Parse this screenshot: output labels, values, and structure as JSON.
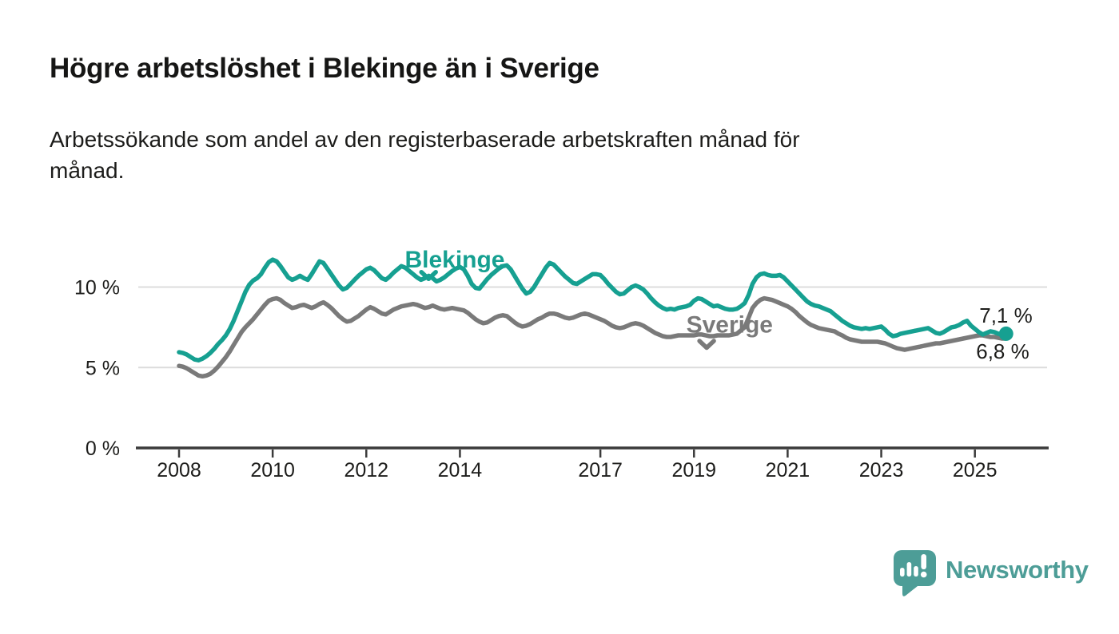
{
  "chart_data": {
    "type": "line",
    "title": "Högre arbetslöshet i Blekinge än i Sverige",
    "subtitle": "Arbetssökande som andel av den registerbaserade arbetskraften månad för månad.",
    "subtitle_lines": [
      "Arbetssökande som andel av den registerbaserade arbetskraften månad för",
      "månad."
    ],
    "x_unit": "month",
    "x_start_year": 2008,
    "x_end": "2025-09",
    "xlim": [
      2007.1,
      2026.6
    ],
    "ylim": [
      0,
      12.5
    ],
    "grid": "horizontal",
    "grid_values": [
      5,
      10
    ],
    "yticks": [
      {
        "value": 0,
        "label": "0 %"
      },
      {
        "value": 5,
        "label": "5 %"
      },
      {
        "value": 10,
        "label": "10 %"
      }
    ],
    "xticks": [
      {
        "value": 2008,
        "label": "2008"
      },
      {
        "value": 2010,
        "label": "2010"
      },
      {
        "value": 2012,
        "label": "2012"
      },
      {
        "value": 2014,
        "label": "2014"
      },
      {
        "value": 2017,
        "label": "2017"
      },
      {
        "value": 2019,
        "label": "2019"
      },
      {
        "value": 2021,
        "label": "2021"
      },
      {
        "value": 2023,
        "label": "2023"
      },
      {
        "value": 2025,
        "label": "2025"
      }
    ],
    "series": [
      {
        "name": "Blekinge",
        "color": "#16a091",
        "end_label": "7,1 %",
        "end_value": 7.1,
        "values": [
          5.95,
          5.9,
          5.8,
          5.65,
          5.5,
          5.45,
          5.55,
          5.7,
          5.9,
          6.15,
          6.45,
          6.7,
          7.0,
          7.4,
          7.9,
          8.5,
          9.1,
          9.7,
          10.15,
          10.4,
          10.55,
          10.8,
          11.2,
          11.55,
          11.7,
          11.6,
          11.3,
          10.95,
          10.6,
          10.45,
          10.55,
          10.7,
          10.55,
          10.45,
          10.8,
          11.2,
          11.6,
          11.5,
          11.15,
          10.8,
          10.45,
          10.1,
          9.85,
          9.95,
          10.2,
          10.45,
          10.7,
          10.9,
          11.1,
          11.2,
          11.05,
          10.8,
          10.55,
          10.45,
          10.65,
          10.9,
          11.1,
          11.3,
          11.2,
          11.0,
          10.8,
          10.6,
          10.45,
          10.55,
          10.7,
          10.55,
          10.35,
          10.45,
          10.6,
          10.8,
          11.0,
          11.15,
          11.25,
          11.1,
          10.7,
          10.2,
          9.95,
          9.9,
          10.2,
          10.5,
          10.75,
          10.95,
          11.15,
          11.3,
          11.35,
          11.1,
          10.7,
          10.3,
          9.9,
          9.6,
          9.7,
          10.0,
          10.4,
          10.8,
          11.2,
          11.5,
          11.4,
          11.15,
          10.9,
          10.65,
          10.45,
          10.25,
          10.2,
          10.35,
          10.5,
          10.65,
          10.8,
          10.8,
          10.75,
          10.5,
          10.2,
          9.95,
          9.7,
          9.55,
          9.6,
          9.8,
          10.0,
          10.1,
          10.0,
          9.85,
          9.6,
          9.3,
          9.05,
          8.85,
          8.7,
          8.6,
          8.65,
          8.6,
          8.7,
          8.75,
          8.8,
          8.9,
          9.15,
          9.3,
          9.25,
          9.1,
          8.95,
          8.8,
          8.85,
          8.75,
          8.65,
          8.6,
          8.6,
          8.65,
          8.8,
          9.0,
          9.5,
          10.2,
          10.6,
          10.8,
          10.85,
          10.75,
          10.7,
          10.7,
          10.75,
          10.6,
          10.35,
          10.1,
          9.85,
          9.6,
          9.35,
          9.1,
          8.95,
          8.85,
          8.8,
          8.7,
          8.6,
          8.5,
          8.3,
          8.1,
          7.9,
          7.75,
          7.6,
          7.5,
          7.45,
          7.4,
          7.45,
          7.4,
          7.45,
          7.5,
          7.55,
          7.35,
          7.1,
          6.95,
          7.0,
          7.1,
          7.15,
          7.2,
          7.25,
          7.3,
          7.35,
          7.4,
          7.45,
          7.3,
          7.15,
          7.1,
          7.2,
          7.35,
          7.5,
          7.55,
          7.65,
          7.8,
          7.9,
          7.6,
          7.4,
          7.2,
          7.05,
          7.15,
          7.25,
          7.2,
          7.1,
          7.05,
          7.1
        ]
      },
      {
        "name": "Sverige",
        "color": "#7a7a7a",
        "end_label": "6,8 %",
        "end_value": 6.8,
        "values": [
          5.1,
          5.05,
          4.95,
          4.8,
          4.65,
          4.5,
          4.45,
          4.5,
          4.6,
          4.8,
          5.05,
          5.35,
          5.65,
          6.0,
          6.4,
          6.8,
          7.2,
          7.5,
          7.75,
          8.0,
          8.3,
          8.6,
          8.9,
          9.15,
          9.25,
          9.3,
          9.2,
          9.0,
          8.85,
          8.7,
          8.75,
          8.85,
          8.9,
          8.8,
          8.7,
          8.8,
          8.95,
          9.05,
          8.9,
          8.7,
          8.45,
          8.2,
          8.0,
          7.85,
          7.9,
          8.05,
          8.2,
          8.4,
          8.6,
          8.75,
          8.65,
          8.5,
          8.35,
          8.3,
          8.45,
          8.6,
          8.7,
          8.8,
          8.85,
          8.9,
          8.95,
          8.9,
          8.8,
          8.7,
          8.75,
          8.85,
          8.75,
          8.65,
          8.6,
          8.65,
          8.7,
          8.65,
          8.6,
          8.55,
          8.4,
          8.2,
          8.0,
          7.85,
          7.75,
          7.8,
          7.95,
          8.1,
          8.2,
          8.25,
          8.2,
          8.0,
          7.8,
          7.65,
          7.55,
          7.6,
          7.7,
          7.85,
          8.0,
          8.1,
          8.25,
          8.35,
          8.35,
          8.3,
          8.2,
          8.1,
          8.05,
          8.1,
          8.2,
          8.3,
          8.35,
          8.3,
          8.2,
          8.1,
          8.0,
          7.9,
          7.75,
          7.6,
          7.5,
          7.45,
          7.5,
          7.6,
          7.7,
          7.75,
          7.7,
          7.6,
          7.45,
          7.3,
          7.15,
          7.05,
          6.95,
          6.9,
          6.9,
          6.95,
          7.0,
          7.0,
          7.0,
          7.0,
          7.0,
          7.05,
          7.05,
          7.0,
          6.95,
          6.95,
          7.0,
          7.0,
          7.0,
          7.0,
          7.05,
          7.1,
          7.3,
          7.5,
          8.1,
          8.7,
          9.0,
          9.2,
          9.3,
          9.25,
          9.2,
          9.1,
          9.0,
          8.9,
          8.8,
          8.65,
          8.45,
          8.2,
          8.0,
          7.8,
          7.65,
          7.55,
          7.45,
          7.4,
          7.35,
          7.3,
          7.25,
          7.1,
          7.0,
          6.85,
          6.75,
          6.7,
          6.65,
          6.6,
          6.6,
          6.6,
          6.6,
          6.6,
          6.55,
          6.5,
          6.4,
          6.3,
          6.2,
          6.15,
          6.1,
          6.15,
          6.2,
          6.25,
          6.3,
          6.35,
          6.4,
          6.45,
          6.5,
          6.5,
          6.55,
          6.6,
          6.65,
          6.7,
          6.75,
          6.8,
          6.85,
          6.9,
          6.95,
          7.0,
          7.0,
          6.95,
          6.9,
          6.9,
          6.85,
          6.8,
          6.8
        ]
      }
    ],
    "annotations": [
      {
        "text": "Blekinge",
        "x": 2013.89,
        "y": 11.76,
        "chevron_x": 2013.33,
        "chevron_y": 10.73,
        "color": "#16a091"
      },
      {
        "text": "Sverige",
        "x": 2019.76,
        "y": 7.72,
        "chevron_x": 2019.27,
        "chevron_y": 6.45,
        "color": "#7a7a7a"
      }
    ],
    "colors": {
      "gridline": "#dcdcdc",
      "axis": "#3b3b3b",
      "text": "#1d1d1b"
    }
  },
  "branding": {
    "logo_text": "Newsworthy",
    "logo_color": "#4d9d97",
    "icon": "newsworthy-speech-bubble-bar-chart-icon"
  }
}
